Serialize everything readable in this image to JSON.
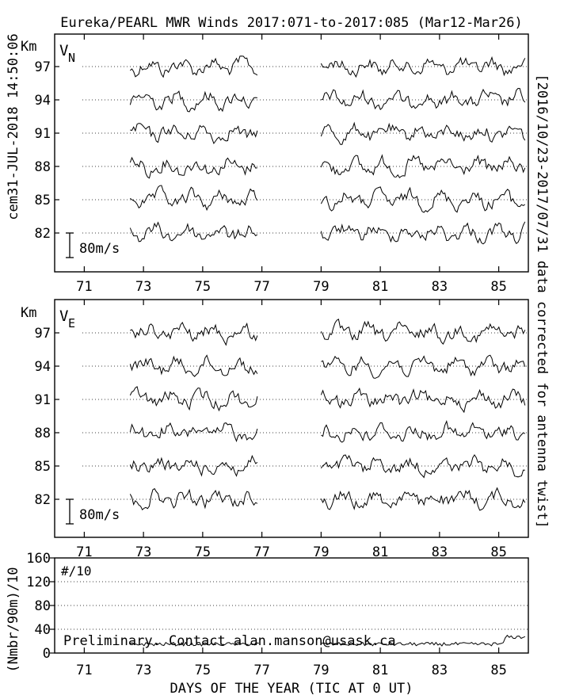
{
  "title": "Eureka/PEARL MWR Winds 2017:071-to-2017:085 (Mar12-Mar26)",
  "left_stamp": "cem31-JUL-2018 14:50:06",
  "right_note": "[2016/10/23-2017/07/31 data corrected for antenna twist]",
  "footer": "Preliminary. Contact alan.manson@usask.ca",
  "chart_data": [
    {
      "type": "line",
      "panel": "VN",
      "label_main": "V",
      "label_sub": "N",
      "ylabel": "Km",
      "heights_km": [
        97,
        94,
        91,
        88,
        85,
        82
      ],
      "xticks": [
        "71",
        "73",
        "75",
        "77",
        "79",
        "81",
        "83",
        "85"
      ],
      "xlim": [
        70,
        86
      ],
      "scale_bar": "80m/s",
      "data_segments_day": [
        [
          72.55,
          76.9
        ],
        [
          79.0,
          86.0
        ]
      ],
      "grid": "dotted horizontal per height"
    },
    {
      "type": "line",
      "panel": "VE",
      "label_main": "V",
      "label_sub": "E",
      "ylabel": "Km",
      "heights_km": [
        97,
        94,
        91,
        88,
        85,
        82
      ],
      "xticks": [
        "71",
        "73",
        "75",
        "77",
        "79",
        "81",
        "83",
        "85"
      ],
      "xlim": [
        70,
        86
      ],
      "scale_bar": "80m/s",
      "data_segments_day": [
        [
          72.55,
          76.9
        ],
        [
          79.0,
          86.0
        ]
      ],
      "grid": "dotted horizontal per height"
    },
    {
      "type": "line",
      "panel": "count",
      "label": "#/10",
      "ylabel": "(Nmbr/90m)/10",
      "yticks": [
        "0",
        "40",
        "80",
        "120",
        "160"
      ],
      "ylim": [
        0,
        160
      ],
      "xticks": [
        "71",
        "73",
        "75",
        "77",
        "79",
        "81",
        "83",
        "85"
      ],
      "xlim": [
        70,
        86
      ],
      "xlabel": "DAYS OF THE YEAR (TIC AT 0 UT)",
      "data_segments_day": [
        [
          72.55,
          76.9
        ],
        [
          79.0,
          86.0
        ]
      ],
      "level_approx": 15
    }
  ]
}
